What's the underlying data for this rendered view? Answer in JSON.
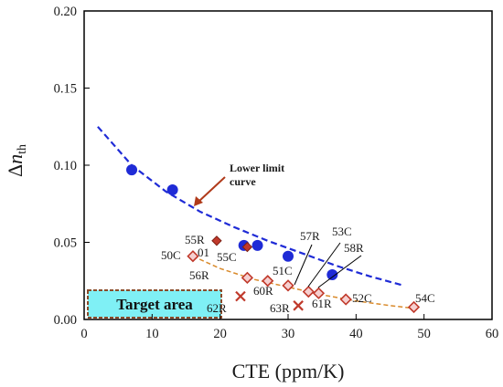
{
  "chart_data": {
    "type": "scatter",
    "xlabel": "CTE (ppm/K)",
    "ylabel": "Δn_th",
    "ylabel_main": "Δ",
    "ylabel_italic": "n",
    "ylabel_sub": "th",
    "xlim": [
      0,
      60
    ],
    "ylim": [
      0,
      0.2
    ],
    "x_ticks": [
      "0",
      "10",
      "20",
      "30",
      "40",
      "50",
      "60"
    ],
    "y_ticks": [
      "0.00",
      "0.05",
      "0.10",
      "0.15",
      "0.20"
    ],
    "grid": false,
    "lower_limit_curve_label": "Lower limit curve",
    "lower_limit_curve_label_lines": [
      "Lower limit",
      "curve"
    ],
    "target_area_label": "Target area",
    "colors": {
      "blue": "#1f2bd6",
      "red": "#c0392b",
      "trend_orange": "#d98a2b",
      "target_fill": "#7ff0f5",
      "target_border": "#8a4b2a",
      "arrow": "#b03a1a"
    },
    "series": [
      {
        "marker": "circle-blue",
        "points": [
          {
            "x": 7,
            "y": 0.097
          },
          {
            "x": 13,
            "y": 0.084
          },
          {
            "x": 23.5,
            "y": 0.048
          },
          {
            "x": 25.5,
            "y": 0.048
          },
          {
            "x": 30,
            "y": 0.041
          },
          {
            "x": 36.5,
            "y": 0.029
          }
        ]
      },
      {
        "marker": "filled-diamond",
        "points": [
          {
            "x": 19.5,
            "y": 0.051,
            "label": "55R"
          },
          {
            "x": 24,
            "y": 0.047,
            "label": "01"
          }
        ]
      },
      {
        "marker": "open-diamond",
        "points": [
          {
            "x": 16,
            "y": 0.041,
            "label": "50C"
          },
          {
            "x": 24,
            "y": 0.027,
            "label": "56R"
          },
          {
            "x": 27,
            "y": 0.025
          },
          {
            "x": 30,
            "y": 0.022,
            "label": "60R"
          },
          {
            "x": 33,
            "y": 0.018,
            "label": "57R"
          },
          {
            "x": 34.5,
            "y": 0.017,
            "label": "53C"
          },
          {
            "x": 38.5,
            "y": 0.013,
            "label": "52C"
          },
          {
            "x": 48.5,
            "y": 0.008,
            "label": "54C"
          }
        ]
      },
      {
        "marker": "cross",
        "points": [
          {
            "x": 23,
            "y": 0.015,
            "label": "62R"
          },
          {
            "x": 31.5,
            "y": 0.009,
            "label": "63R"
          }
        ]
      }
    ],
    "extra_labels": [
      "55C",
      "51C",
      "61R",
      "58R"
    ],
    "lower_limit_curve": [
      {
        "x": 2,
        "y": 0.125
      },
      {
        "x": 7,
        "y": 0.1
      },
      {
        "x": 12,
        "y": 0.083
      },
      {
        "x": 17,
        "y": 0.07
      },
      {
        "x": 22,
        "y": 0.06
      },
      {
        "x": 27,
        "y": 0.051
      },
      {
        "x": 32,
        "y": 0.043
      },
      {
        "x": 37,
        "y": 0.035
      },
      {
        "x": 42,
        "y": 0.028
      },
      {
        "x": 47,
        "y": 0.022
      }
    ],
    "trend_curve": [
      {
        "x": 16,
        "y": 0.041
      },
      {
        "x": 20,
        "y": 0.033
      },
      {
        "x": 25,
        "y": 0.026
      },
      {
        "x": 30,
        "y": 0.021
      },
      {
        "x": 35,
        "y": 0.016
      },
      {
        "x": 40,
        "y": 0.012
      },
      {
        "x": 45,
        "y": 0.009
      },
      {
        "x": 49,
        "y": 0.007
      }
    ]
  }
}
